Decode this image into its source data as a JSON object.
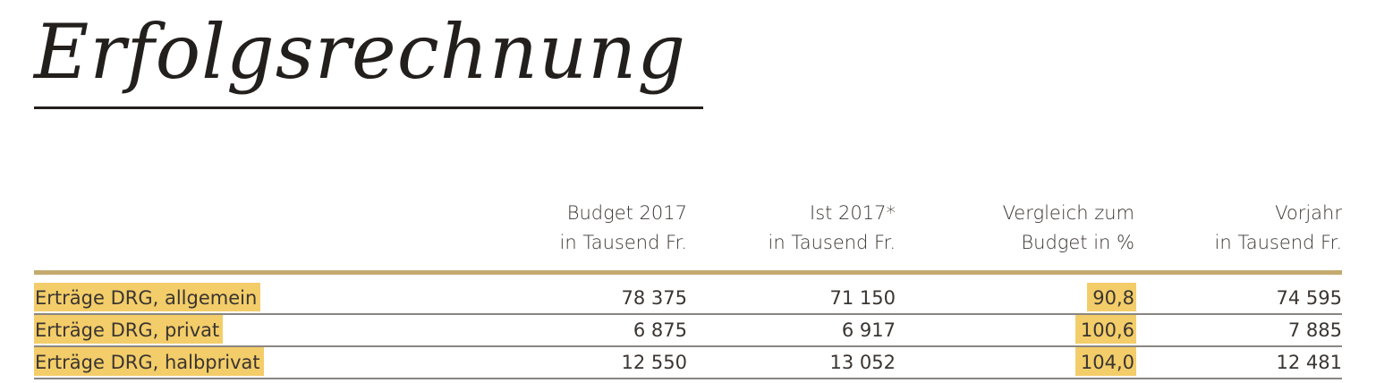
{
  "title": "Erfolgsrechnung",
  "columns": [
    {
      "line1": "Budget 2017",
      "line2": "in Tausend Fr."
    },
    {
      "line1": "Ist 2017*",
      "line2": "in Tausend Fr."
    },
    {
      "line1": "Vergleich zum",
      "line2": "Budget in %"
    },
    {
      "line1": "Vorjahr",
      "line2": "in Tausend Fr."
    }
  ],
  "rows": [
    {
      "label": "Erträge DRG, allgemein",
      "budget": "78 375",
      "ist": "71 150",
      "vergleich": "90,8",
      "vorjahr": "74 595"
    },
    {
      "label": "Erträge DRG, privat",
      "budget": "6 875",
      "ist": "6 917",
      "vergleich": "100,6",
      "vorjahr": "7 885"
    },
    {
      "label": "Erträge DRG, halbprivat",
      "budget": "12 550",
      "ist": "13 052",
      "vergleich": "104,0",
      "vorjahr": "12 481"
    }
  ],
  "colors": {
    "highlight": "#f3cd69",
    "rule": "#c4aa6e",
    "text": "#2a2522"
  }
}
